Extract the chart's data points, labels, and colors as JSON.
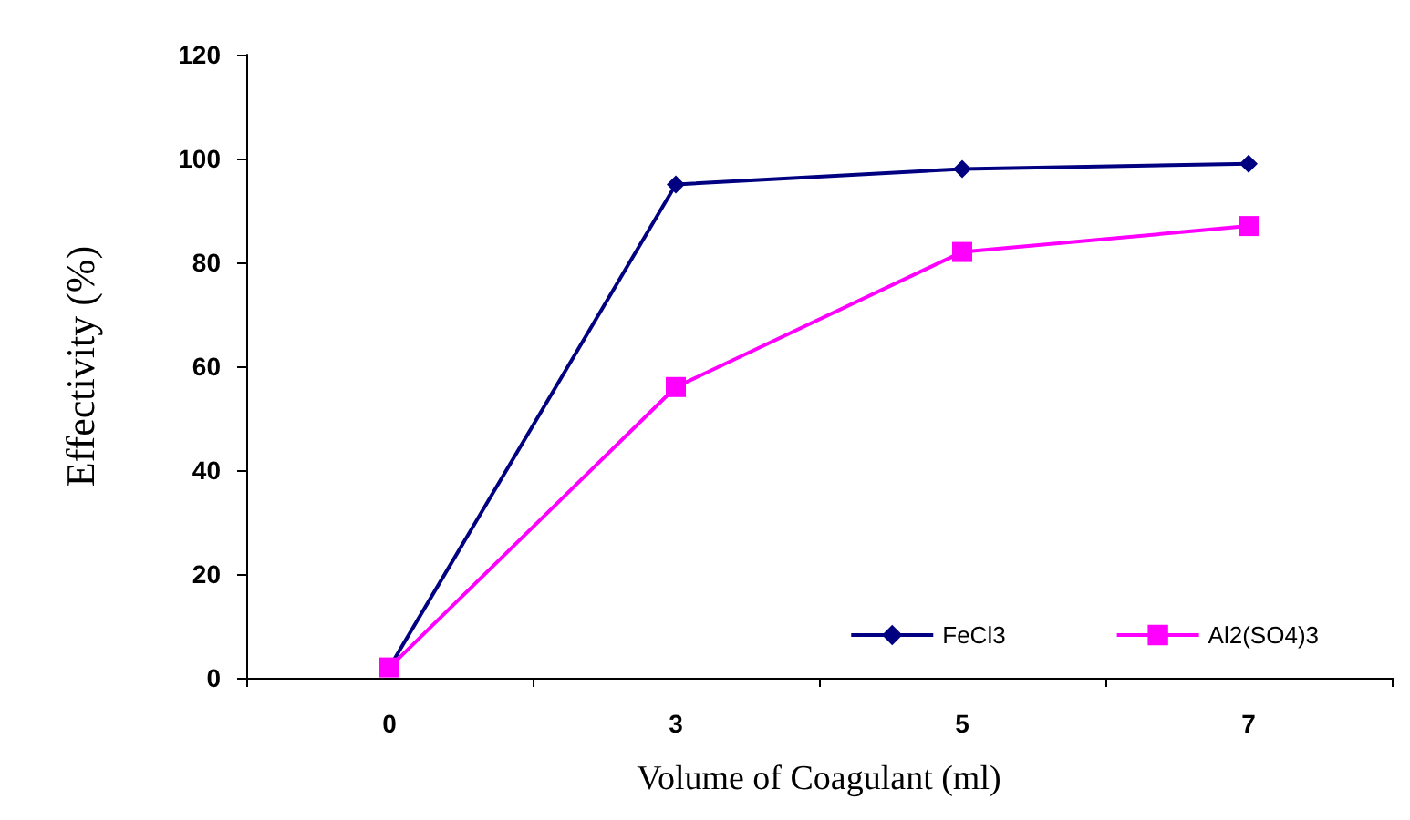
{
  "chart_data": {
    "type": "line",
    "xlabel": "Volume of Coagulant (ml)",
    "ylabel": "Effectivity (%)",
    "categories": [
      "0",
      "3",
      "5",
      "7"
    ],
    "series": [
      {
        "name": "FeCl3",
        "color": "#000080",
        "values": [
          2,
          95,
          98,
          99
        ],
        "marker": "diamond"
      },
      {
        "name": "Al2(SO4)3",
        "color": "#ff00ff",
        "values": [
          2,
          56,
          82,
          87
        ],
        "marker": "square"
      }
    ],
    "ylim": [
      0,
      120
    ],
    "yticks": [
      0,
      20,
      40,
      60,
      80,
      100,
      120
    ],
    "grid": false,
    "legend": "bottom right",
    "line_style": "solid"
  }
}
